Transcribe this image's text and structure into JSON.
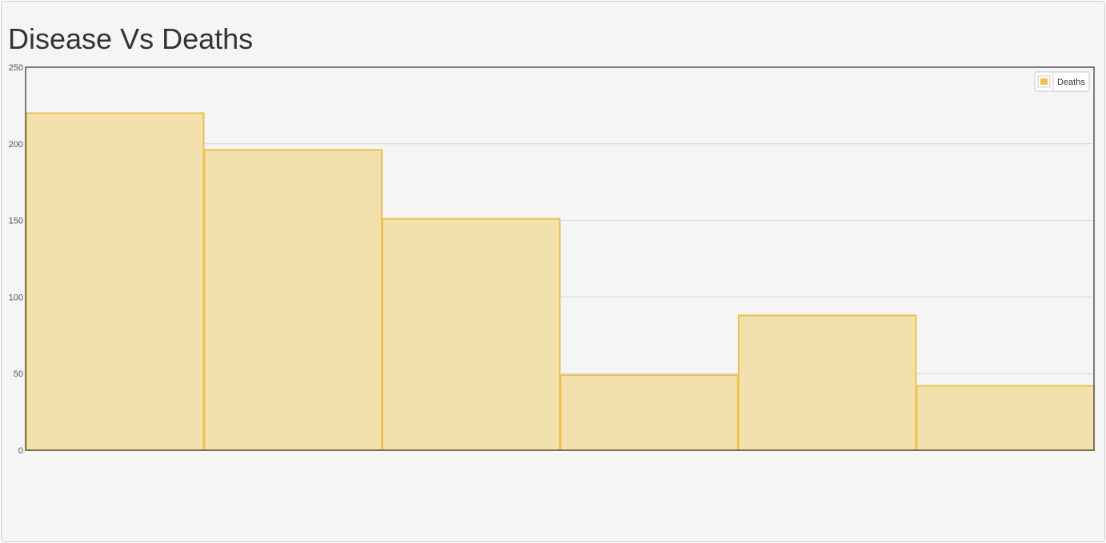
{
  "chart_data": {
    "type": "bar",
    "title": "Disease Vs Deaths",
    "xlabel": "",
    "ylabel": "",
    "categories": [
      "",
      "",
      "",
      "",
      "",
      ""
    ],
    "series": [
      {
        "name": "Deaths",
        "values": [
          220,
          196,
          151,
          49,
          88,
          42
        ]
      }
    ],
    "ylim": [
      0,
      250
    ],
    "yticks": [
      "0",
      "50",
      "100",
      "150",
      "200",
      "250"
    ],
    "grid": true,
    "legend_position": "top-right",
    "colors": {
      "bar_fill": "#f2e0ad",
      "bar_stroke": "#eec14e",
      "grid": "#d5d5d5",
      "axis": "#555555"
    }
  }
}
